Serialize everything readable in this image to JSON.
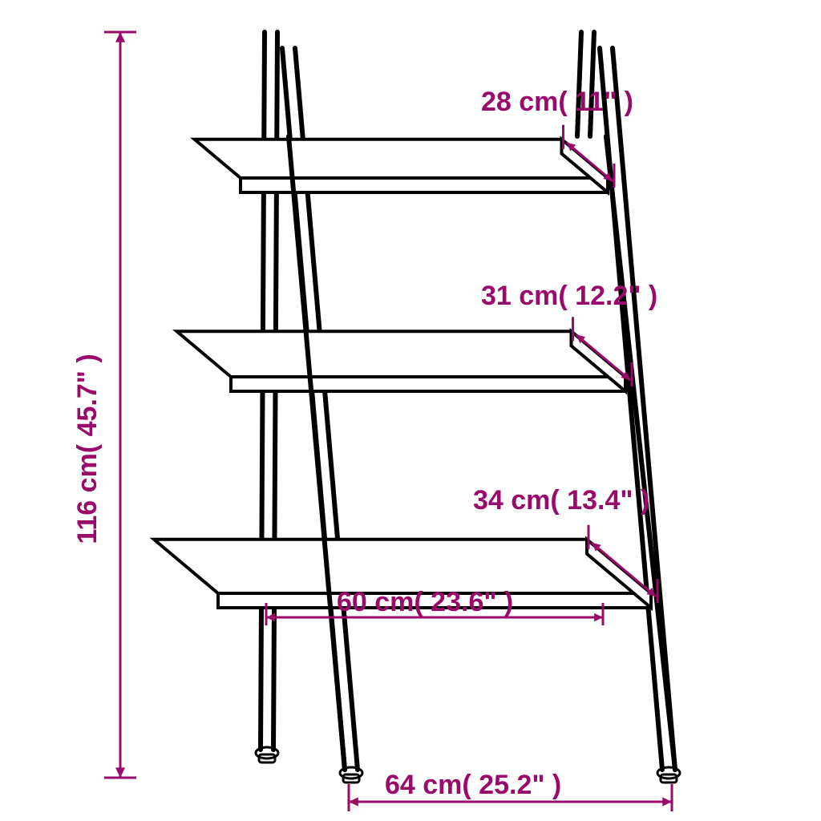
{
  "type": "dimensioned-product-diagram",
  "colors": {
    "label": "#9a0a6a",
    "product_line": "#000000",
    "background": "#ffffff"
  },
  "dimensions": {
    "height": {
      "cm": "116 cm",
      "in": "( 45.7\" )"
    },
    "shelf1_depth": {
      "cm": "28 cm",
      "in": "( 11\" )"
    },
    "shelf2_depth": {
      "cm": "31 cm",
      "in": "( 12.2\" )"
    },
    "shelf3_depth": {
      "cm": "34 cm",
      "in": "( 13.4\" )"
    },
    "shelf_width": {
      "cm": "60 cm",
      "in": "( 23.6\" )"
    },
    "base_width": {
      "cm": "64 cm",
      "in": "( 25.2\" )"
    }
  },
  "font": {
    "size_pt": 34,
    "weight": "bold"
  },
  "line_widths": {
    "dimension": 3,
    "product": 6
  }
}
